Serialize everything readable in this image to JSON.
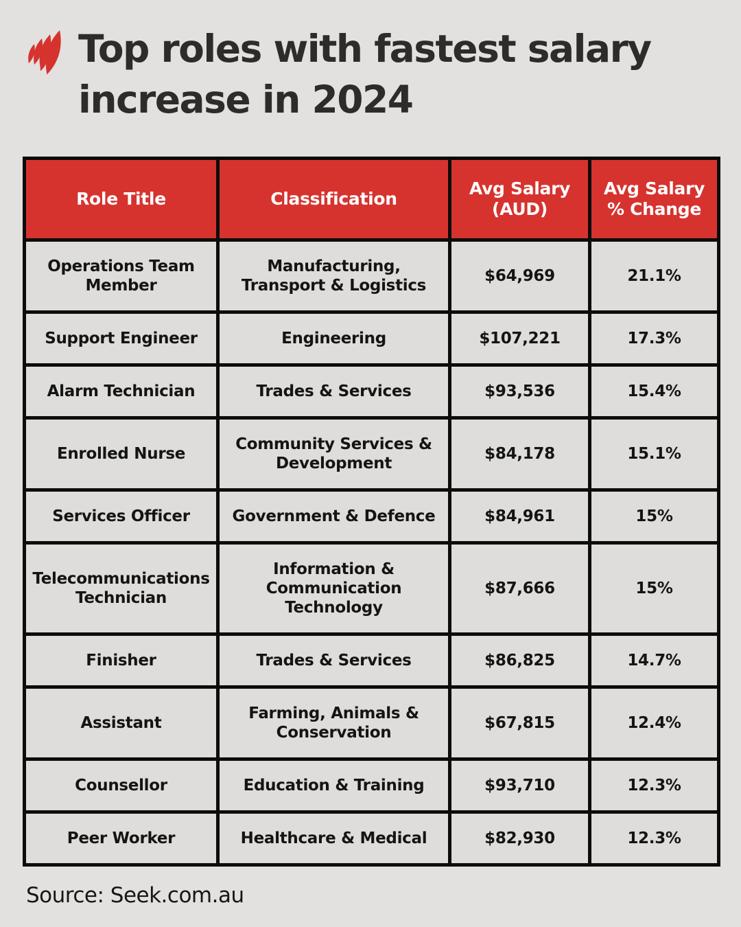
{
  "colors": {
    "background": "#e2e1df",
    "header_fill": "#d6332f",
    "header_text": "#ffffff",
    "cell_text": "#141414",
    "border": "#0c0c0c",
    "title_text": "#2d2c2a",
    "logo_red": "#d6332f"
  },
  "branding": {
    "logo": "sbs-mercator-flame-logo"
  },
  "header": {
    "title_line1": "Top roles with fastest salary",
    "title_line2": "increase in 2024"
  },
  "chart_data": {
    "type": "table",
    "title": "Top roles with fastest salary increase in 2024",
    "columns": [
      "Role Title",
      "Classification",
      "Avg Salary (AUD)",
      "Avg Salary % Change"
    ],
    "rows": [
      [
        "Operations Team Member",
        "Manufacturing, Transport & Logistics",
        "$64,969",
        "21.1%"
      ],
      [
        "Support Engineer",
        "Engineering",
        "$107,221",
        "17.3%"
      ],
      [
        "Alarm Technician",
        "Trades & Services",
        "$93,536",
        "15.4%"
      ],
      [
        "Enrolled Nurse",
        "Community Services & Development",
        "$84,178",
        "15.1%"
      ],
      [
        "Services Officer",
        "Government & Defence",
        "$84,961",
        "15%"
      ],
      [
        "Telecommunications Technician",
        "Information & Communication Technology",
        "$87,666",
        "15%"
      ],
      [
        "Finisher",
        "Trades & Services",
        "$86,825",
        "14.7%"
      ],
      [
        "Assistant",
        "Farming, Animals & Conservation",
        "$67,815",
        "12.4%"
      ],
      [
        "Counsellor",
        "Education & Training",
        "$93,710",
        "12.3%"
      ],
      [
        "Peer Worker",
        "Healthcare & Medical",
        "$82,930",
        "12.3%"
      ]
    ],
    "source": "Source: Seek.com.au"
  }
}
